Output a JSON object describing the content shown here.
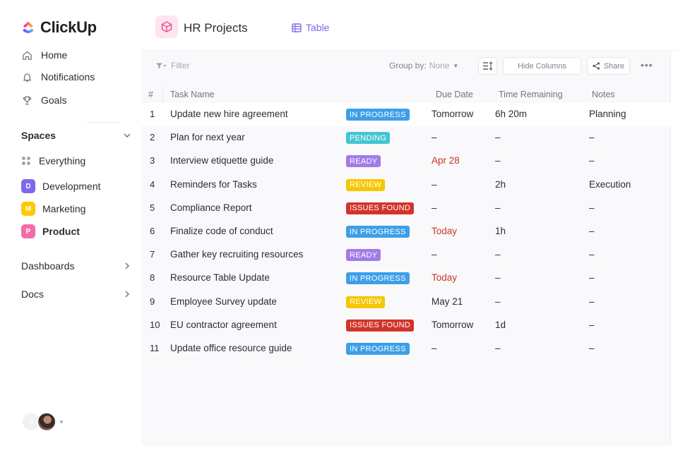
{
  "app": {
    "name": "ClickUp",
    "colors": {
      "accent": "#7b68ee",
      "logo_purple": "#8930fd",
      "logo_pink": "#fd71af",
      "logo_yellow": "#ffc800"
    }
  },
  "sidebar": {
    "nav": [
      {
        "label": "Home",
        "icon": "home-icon"
      },
      {
        "label": "Notifications",
        "icon": "bell-icon"
      },
      {
        "label": "Goals",
        "icon": "trophy-icon"
      }
    ],
    "spaces_label": "Spaces",
    "spaces": [
      {
        "label": "Everything",
        "badge": "",
        "color": ""
      },
      {
        "label": "Development",
        "badge": "D",
        "color": "#7b68ee"
      },
      {
        "label": "Marketing",
        "badge": "M",
        "color": "#ffc800"
      },
      {
        "label": "Product",
        "badge": "P",
        "color": "#f26ca7"
      }
    ],
    "sections": [
      {
        "label": "Dashboards"
      },
      {
        "label": "Docs"
      }
    ],
    "user": {
      "initial": "S"
    }
  },
  "header": {
    "project_title": "HR Projects",
    "view_tab": "Table"
  },
  "toolbar": {
    "filter_label": "Filter",
    "group_by_label": "Group by:",
    "group_by_value": "None",
    "hide_columns_label": "Hide Columns",
    "share_label": "Share"
  },
  "table": {
    "columns": {
      "num": "#",
      "name": "Task Name",
      "due": "Due Date",
      "time": "Time Remaining",
      "notes": "Notes"
    },
    "status_colors": {
      "IN PROGRESS": "#3c9fe8",
      "PENDING": "#43c6d2",
      "READY": "#a17ce6",
      "REVIEW": "#f7c600",
      "ISSUES FOUND": "#d3332a"
    },
    "rows": [
      {
        "num": "1",
        "name": "Update new hire agreement",
        "status": "IN PROGRESS",
        "due": "Tomorrow",
        "due_red": false,
        "time": "6h 20m",
        "notes": "Planning"
      },
      {
        "num": "2",
        "name": "Plan for next year",
        "status": "PENDING",
        "due": "–",
        "due_red": false,
        "time": "–",
        "notes": "–"
      },
      {
        "num": "3",
        "name": "Interview etiquette guide",
        "status": "READY",
        "due": "Apr 28",
        "due_red": true,
        "time": "–",
        "notes": "–"
      },
      {
        "num": "4",
        "name": "Reminders for Tasks",
        "status": "REVIEW",
        "due": "–",
        "due_red": false,
        "time": "2h",
        "notes": "Execution"
      },
      {
        "num": "5",
        "name": "Compliance Report",
        "status": "ISSUES FOUND",
        "due": "–",
        "due_red": false,
        "time": "–",
        "notes": "–"
      },
      {
        "num": "6",
        "name": "Finalize code of conduct",
        "status": "IN PROGRESS",
        "due": "Today",
        "due_red": true,
        "time": "1h",
        "notes": "–"
      },
      {
        "num": "7",
        "name": "Gather key recruiting resources",
        "status": "READY",
        "due": "–",
        "due_red": false,
        "time": "–",
        "notes": "–"
      },
      {
        "num": "8",
        "name": "Resource Table Update",
        "status": "IN PROGRESS",
        "due": "Today",
        "due_red": true,
        "time": "–",
        "notes": "–"
      },
      {
        "num": "9",
        "name": "Employee Survey update",
        "status": "REVIEW",
        "due": "May 21",
        "due_red": false,
        "time": "–",
        "notes": "–"
      },
      {
        "num": "10",
        "name": "EU contractor agreement",
        "status": "ISSUES FOUND",
        "due": "Tomorrow",
        "due_red": false,
        "time": "1d",
        "notes": "–"
      },
      {
        "num": "11",
        "name": "Update office resource guide",
        "status": "IN PROGRESS",
        "due": "–",
        "due_red": false,
        "time": "–",
        "notes": "–"
      }
    ]
  }
}
